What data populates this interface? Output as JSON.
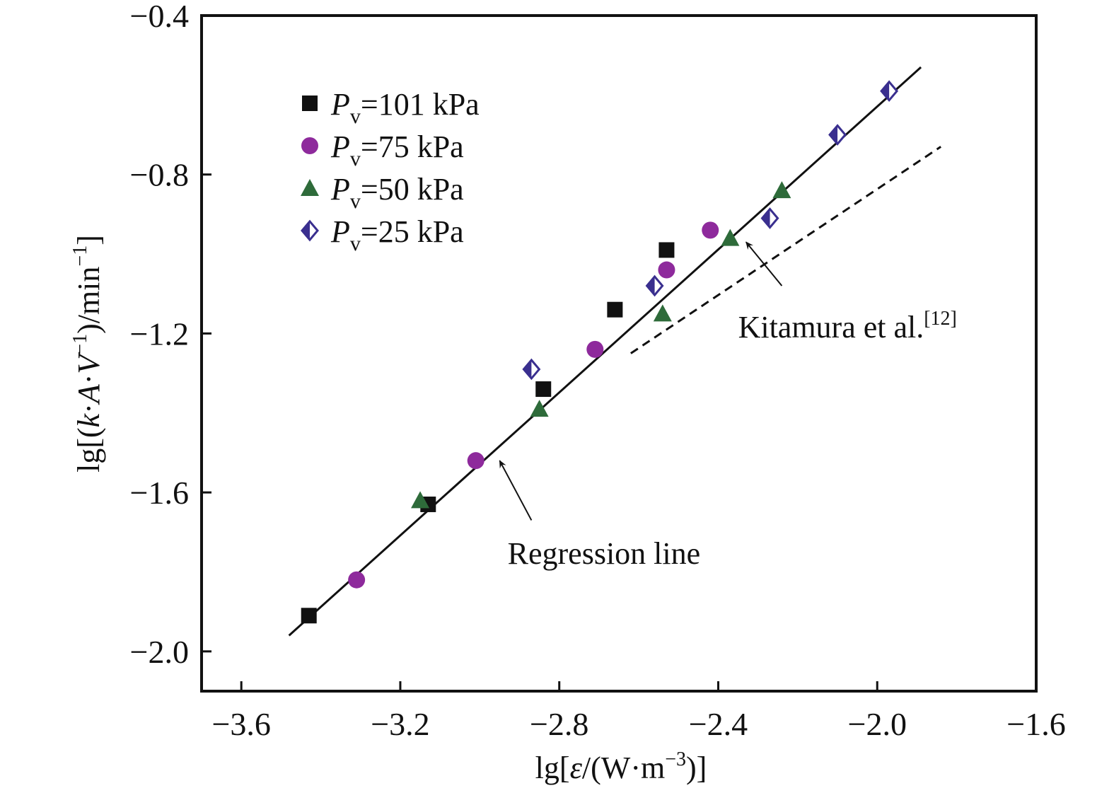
{
  "chart_data": {
    "type": "scatter",
    "xlabel": {
      "pre": "lg[",
      "var": "ε",
      "post": "/(W·m",
      "sup": "−3",
      "end": ")]"
    },
    "ylabel": {
      "pre": "lg[(",
      "var1": "k",
      "dot1": "·",
      "var2": "A",
      "dot2": "·",
      "var3": "V",
      "sup1": "−1",
      "mid": ")/min",
      "sup2": "−1",
      "end": "]"
    },
    "xlim": [
      -3.7,
      -1.6
    ],
    "ylim": [
      -2.1,
      -0.4
    ],
    "xticks": [
      -3.6,
      -3.2,
      -2.8,
      -2.4,
      -2.0,
      -1.6
    ],
    "xtick_labels": [
      "−3.6",
      "−3.2",
      "−2.8",
      "−2.4",
      "−2.0",
      "−1.6"
    ],
    "yticks": [
      -2.0,
      -1.6,
      -1.2,
      -0.8,
      -0.4
    ],
    "ytick_labels": [
      "−2.0",
      "−1.6",
      "−1.2",
      "−0.8",
      "−0.4"
    ],
    "grid": false,
    "legend_position": "top-left",
    "series": [
      {
        "name_var": "P",
        "name_sub": "v",
        "name_rest": "=101 kPa",
        "marker": "square",
        "color": "#111111",
        "x": [
          -3.43,
          -3.13,
          -2.84,
          -2.66,
          -2.53
        ],
        "y": [
          -1.91,
          -1.63,
          -1.34,
          -1.14,
          -0.99
        ]
      },
      {
        "name_var": "P",
        "name_sub": "v",
        "name_rest": "=75 kPa",
        "marker": "circle",
        "color": "#8e2a9c",
        "x": [
          -3.31,
          -3.01,
          -2.71,
          -2.53,
          -2.42
        ],
        "y": [
          -1.82,
          -1.52,
          -1.24,
          -1.04,
          -0.94
        ]
      },
      {
        "name_var": "P",
        "name_sub": "v",
        "name_rest": "=50 kPa",
        "marker": "triangle",
        "color": "#2e6b3a",
        "x": [
          -3.15,
          -2.85,
          -2.54,
          -2.37,
          -2.24
        ],
        "y": [
          -1.62,
          -1.39,
          -1.15,
          -0.96,
          -0.84
        ]
      },
      {
        "name_var": "P",
        "name_sub": "v",
        "name_rest": "=25 kPa",
        "marker": "diamond",
        "color": "#3a2f8f",
        "x": [
          -2.87,
          -2.56,
          -2.27,
          -2.1,
          -1.97
        ],
        "y": [
          -1.29,
          -1.08,
          -0.91,
          -0.7,
          -0.59
        ]
      }
    ],
    "lines": [
      {
        "label": "Regression line",
        "style": "solid",
        "x": [
          -3.48,
          -1.89
        ],
        "y": [
          -1.96,
          -0.53
        ]
      },
      {
        "label_main": "Kitamura et al.",
        "label_sup": "[12]",
        "style": "dashed",
        "x": [
          -2.62,
          -1.84
        ],
        "y": [
          -1.25,
          -0.73
        ]
      }
    ],
    "annotations": [
      {
        "text": "Regression line",
        "text_x": -2.93,
        "text_y": -1.78,
        "arrow_from": [
          -2.87,
          -1.67
        ],
        "arrow_to": [
          -2.95,
          -1.52
        ]
      },
      {
        "text_main": "Kitamura et al.",
        "text_sup": "[12]",
        "text_x": -2.35,
        "text_y": -1.21,
        "arrow_from": [
          -2.24,
          -1.08
        ],
        "arrow_to": [
          -2.33,
          -0.97
        ]
      }
    ]
  }
}
